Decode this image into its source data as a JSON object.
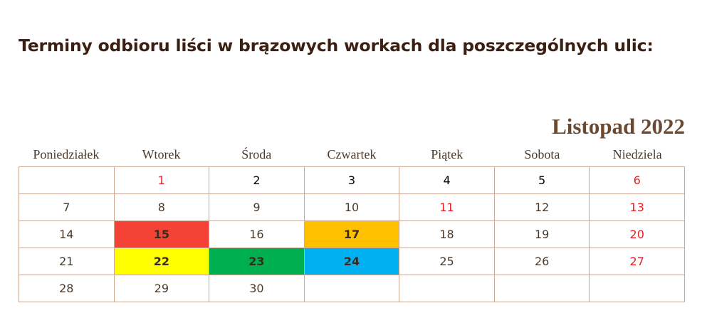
{
  "title": "Terminy odbioru liści w brązowych workach dla poszczególnych ulic:",
  "month": "Listopad 2022",
  "weekdays": [
    "Poniedziałek",
    "Wtorek",
    "Środa",
    "Czwartek",
    "Piątek",
    "Sobota",
    "Niedziela"
  ],
  "days": [
    {
      "label": "",
      "color": "",
      "bg": "",
      "bold": false
    },
    {
      "label": "1",
      "color": "red",
      "bg": "",
      "bold": false
    },
    {
      "label": "2",
      "color": "black",
      "bg": "",
      "bold": false
    },
    {
      "label": "3",
      "color": "black",
      "bg": "",
      "bold": false
    },
    {
      "label": "4",
      "color": "black",
      "bg": "",
      "bold": false
    },
    {
      "label": "5",
      "color": "black",
      "bg": "",
      "bold": false
    },
    {
      "label": "6",
      "color": "red",
      "bg": "",
      "bold": false
    },
    {
      "label": "7",
      "color": "",
      "bg": "",
      "bold": false
    },
    {
      "label": "8",
      "color": "",
      "bg": "",
      "bold": false
    },
    {
      "label": "9",
      "color": "",
      "bg": "",
      "bold": false
    },
    {
      "label": "10",
      "color": "",
      "bg": "",
      "bold": false
    },
    {
      "label": "11",
      "color": "red",
      "bg": "",
      "bold": false
    },
    {
      "label": "12",
      "color": "",
      "bg": "",
      "bold": false
    },
    {
      "label": "13",
      "color": "red",
      "bg": "",
      "bold": false
    },
    {
      "label": "14",
      "color": "",
      "bg": "",
      "bold": false
    },
    {
      "label": "15",
      "color": "",
      "bg": "#f44336",
      "bold": true
    },
    {
      "label": "16",
      "color": "",
      "bg": "",
      "bold": false
    },
    {
      "label": "17",
      "color": "",
      "bg": "#ffc000",
      "bold": true
    },
    {
      "label": "18",
      "color": "",
      "bg": "",
      "bold": false
    },
    {
      "label": "19",
      "color": "",
      "bg": "",
      "bold": false
    },
    {
      "label": "20",
      "color": "red",
      "bg": "",
      "bold": false
    },
    {
      "label": "21",
      "color": "",
      "bg": "",
      "bold": false
    },
    {
      "label": "22",
      "color": "",
      "bg": "#ffff00",
      "bold": true
    },
    {
      "label": "23",
      "color": "",
      "bg": "#00b050",
      "bold": true
    },
    {
      "label": "24",
      "color": "",
      "bg": "#00b0f0",
      "bold": true
    },
    {
      "label": "25",
      "color": "",
      "bg": "",
      "bold": false
    },
    {
      "label": "26",
      "color": "",
      "bg": "",
      "bold": false
    },
    {
      "label": "27",
      "color": "red",
      "bg": "",
      "bold": false
    },
    {
      "label": "28",
      "color": "",
      "bg": "",
      "bold": false
    },
    {
      "label": "29",
      "color": "",
      "bg": "",
      "bold": false
    },
    {
      "label": "30",
      "color": "",
      "bg": "",
      "bold": false
    },
    {
      "label": "",
      "color": "",
      "bg": "",
      "bold": false
    },
    {
      "label": "",
      "color": "",
      "bg": "",
      "bold": false
    },
    {
      "label": "",
      "color": "",
      "bg": "",
      "bold": false
    },
    {
      "label": "",
      "color": "",
      "bg": "",
      "bold": false
    }
  ]
}
